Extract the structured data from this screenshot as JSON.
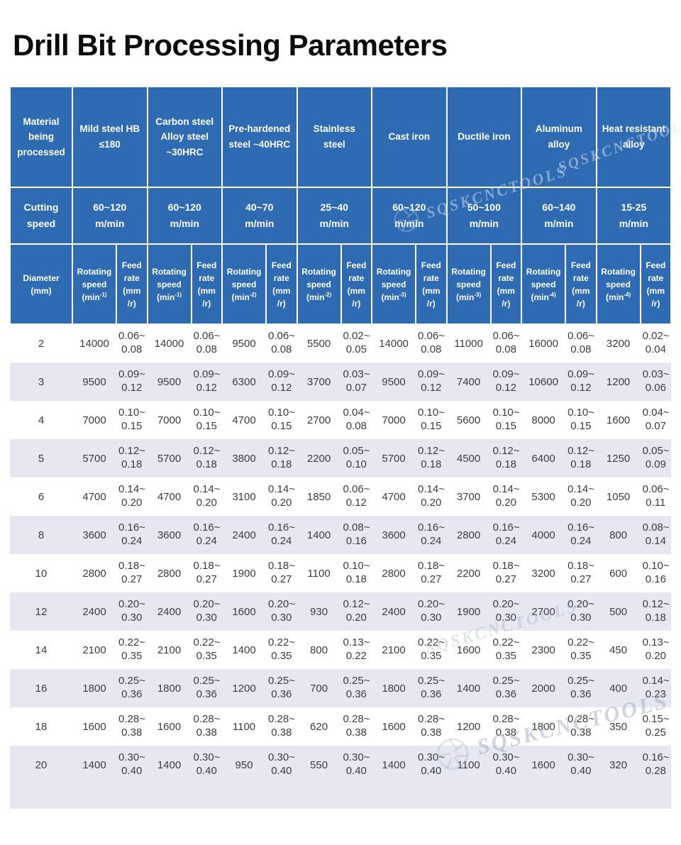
{
  "title": "Drill Bit Processing Parameters",
  "watermark": {
    "text": "SQSKCNCTOOLS",
    "icon": "aperture-icon"
  },
  "colors": {
    "header_blue": "#2e6bb2",
    "stripe_lavender": "#e7e7f1",
    "text_dark": "#3c3c40"
  },
  "table": {
    "corner_material": "Material being processed",
    "corner_cutting": "Cutting speed",
    "diameter_header": "Diameter (mm)",
    "labels": {
      "rotating": "Rotating speed",
      "min_open": "(min",
      "feed": "Feed rate (mm /r)"
    },
    "materials": [
      {
        "name": "Mild steel HB ≤180",
        "speed_range": "60~120",
        "speed_unit": "m/min",
        "rot_sup": "-1)"
      },
      {
        "name": "Carbon steel Alloy steel ~30HRC",
        "speed_range": "60~120",
        "speed_unit": "m/min",
        "rot_sup": "-1)"
      },
      {
        "name": "Pre-hardened steel ~40HRC",
        "speed_range": "40~70",
        "speed_unit": "m/min",
        "rot_sup": "-2)"
      },
      {
        "name": "Stainless steel",
        "speed_range": "25~40",
        "speed_unit": "m/min",
        "rot_sup": "-2)"
      },
      {
        "name": "Cast iron",
        "speed_range": "60~120",
        "speed_unit": "m/min",
        "rot_sup": "-3)"
      },
      {
        "name": "Ductile iron",
        "speed_range": "50~100",
        "speed_unit": "m/min",
        "rot_sup": "-3)"
      },
      {
        "name": "Aluminum alloy",
        "speed_range": "60~140",
        "speed_unit": "m/min",
        "rot_sup": "-4)"
      },
      {
        "name": "Heat resistant alloy",
        "speed_range": "15-25",
        "speed_unit": "m/min",
        "rot_sup": "-4)"
      }
    ],
    "rows": [
      {
        "diameter": "2",
        "values": [
          "14000",
          "0.06~ 0.08",
          "14000",
          "0.06~ 0.08",
          "9500",
          "0.06~ 0.08",
          "5500",
          "0.02~ 0.05",
          "14000",
          "0.06~ 0.08",
          "11000",
          "0.06~ 0.08",
          "16000",
          "0.06~ 0.08",
          "3200",
          "0.02~ 0.04"
        ]
      },
      {
        "diameter": "3",
        "values": [
          "9500",
          "0.09~ 0.12",
          "9500",
          "0.09~ 0.12",
          "6300",
          "0.09~ 0.12",
          "3700",
          "0.03~ 0.07",
          "9500",
          "0.09~ 0.12",
          "7400",
          "0.09~ 0.12",
          "10600",
          "0.09~ 0.12",
          "1200",
          "0.03~ 0.06"
        ]
      },
      {
        "diameter": "4",
        "values": [
          "7000",
          "0.10~ 0.15",
          "7000",
          "0.10~ 0.15",
          "4700",
          "0.10~ 0.15",
          "2700",
          "0.04~ 0.08",
          "7000",
          "0.10~ 0.15",
          "5600",
          "0.10~ 0.15",
          "8000",
          "0.10~ 0.15",
          "1600",
          "0.04~ 0.07"
        ]
      },
      {
        "diameter": "5",
        "values": [
          "5700",
          "0.12~ 0.18",
          "5700",
          "0.12~ 0.18",
          "3800",
          "0.12~ 0.18",
          "2200",
          "0.05~ 0.10",
          "5700",
          "0.12~ 0.18",
          "4500",
          "0.12~ 0.18",
          "6400",
          "0.12~ 0.18",
          "1250",
          "0.05~ 0.09"
        ]
      },
      {
        "diameter": "6",
        "values": [
          "4700",
          "0.14~ 0.20",
          "4700",
          "0.14~ 0.20",
          "3100",
          "0.14~ 0.20",
          "1850",
          "0.06~ 0.12",
          "4700",
          "0.14~ 0.20",
          "3700",
          "0.14~ 0.20",
          "5300",
          "0.14~ 0.20",
          "1050",
          "0.06~ 0.11"
        ]
      },
      {
        "diameter": "8",
        "values": [
          "3600",
          "0.16~ 0.24",
          "3600",
          "0.16~ 0.24",
          "2400",
          "0.16~ 0.24",
          "1400",
          "0.08~ 0.16",
          "3600",
          "0.16~ 0.24",
          "2800",
          "0.16~ 0.24",
          "4000",
          "0.16~ 0.24",
          "800",
          "0.08~ 0.14"
        ]
      },
      {
        "diameter": "10",
        "values": [
          "2800",
          "0.18~ 0.27",
          "2800",
          "0.18~ 0.27",
          "1900",
          "0.18~ 0.27",
          "1100",
          "0.10~ 0.18",
          "2800",
          "0.18~ 0.27",
          "2200",
          "0.18~ 0.27",
          "3200",
          "0.18~ 0.27",
          "600",
          "0.10~ 0.16"
        ]
      },
      {
        "diameter": "12",
        "values": [
          "2400",
          "0.20~ 0.30",
          "2400",
          "0.20~ 0.30",
          "1600",
          "0.20~ 0.30",
          "930",
          "0.12~ 0.20",
          "2400",
          "0.20~ 0.30",
          "1900",
          "0.20~ 0.30",
          "2700",
          "0.20~ 0.30",
          "500",
          "0.12~ 0.18"
        ]
      },
      {
        "diameter": "14",
        "values": [
          "2100",
          "0.22~ 0.35",
          "2100",
          "0.22~ 0.35",
          "1400",
          "0.22~ 0.35",
          "800",
          "0.13~ 0.22",
          "2100",
          "0.22~ 0.35",
          "1600",
          "0.22~ 0.35",
          "2300",
          "0.22~ 0.35",
          "450",
          "0.13~ 0.20"
        ]
      },
      {
        "diameter": "16",
        "values": [
          "1800",
          "0.25~ 0.36",
          "1800",
          "0.25~ 0.36",
          "1200",
          "0.25~ 0.36",
          "700",
          "0.25~ 0.36",
          "1800",
          "0.25~ 0.36",
          "1400",
          "0.25~ 0.36",
          "2000",
          "0.25~ 0.36",
          "400",
          "0.14~ 0.23"
        ]
      },
      {
        "diameter": "18",
        "values": [
          "1600",
          "0.28~ 0.38",
          "1600",
          "0.28~ 0.38",
          "1100",
          "0.28~ 0.38",
          "620",
          "0.28~ 0.38",
          "1600",
          "0.28~ 0.38",
          "1200",
          "0.28~ 0.38",
          "1800",
          "0.28~ 0.38",
          "350",
          "0.15~ 0.25"
        ]
      },
      {
        "diameter": "20",
        "values": [
          "1400",
          "0.30~ 0.40",
          "1400",
          "0.30~ 0.40",
          "950",
          "0.30~ 0.40",
          "550",
          "0.30~ 0.40",
          "1400",
          "0.30~ 0.40",
          "1100",
          "0.30~ 0.40",
          "1600",
          "0.30~ 0.40",
          "320",
          "0.16~ 0.28"
        ]
      }
    ]
  }
}
